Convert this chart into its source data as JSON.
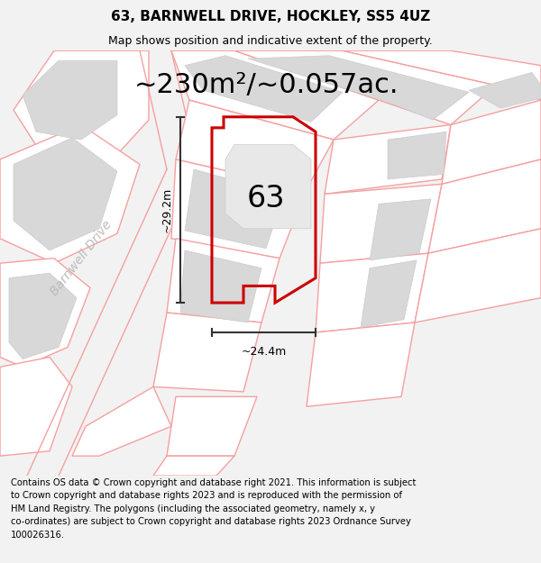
{
  "title": "63, BARNWELL DRIVE, HOCKLEY, SS5 4UZ",
  "subtitle": "Map shows position and indicative extent of the property.",
  "area_text": "~230m²/~0.057ac.",
  "dim_vertical": "~29.2m",
  "dim_horizontal": "~24.4m",
  "label_number": "63",
  "road_label": "Barnwell Drive",
  "copyright_text": "Contains OS data © Crown copyright and database right 2021. This information is subject to Crown copyright and database rights 2023 and is reproduced with the permission of HM Land Registry. The polygons (including the associated geometry, namely x, y co-ordinates) are subject to Crown copyright and database rights 2023 Ordnance Survey 100026316.",
  "bg_color": "#f2f2f2",
  "map_bg": "#ffffff",
  "property_color": "#cc0000",
  "plot_line_color": "#f5a0a0",
  "gray_building_color": "#d8d8d8",
  "gray_building_edge": "#cccccc",
  "title_fontsize": 11,
  "subtitle_fontsize": 9,
  "area_fontsize": 22,
  "label_fontsize": 24,
  "dim_fontsize": 9,
  "copyright_fontsize": 7.2,
  "road_label_fontsize": 10,
  "figwidth": 6.0,
  "figheight": 6.25,
  "dpi": 100
}
